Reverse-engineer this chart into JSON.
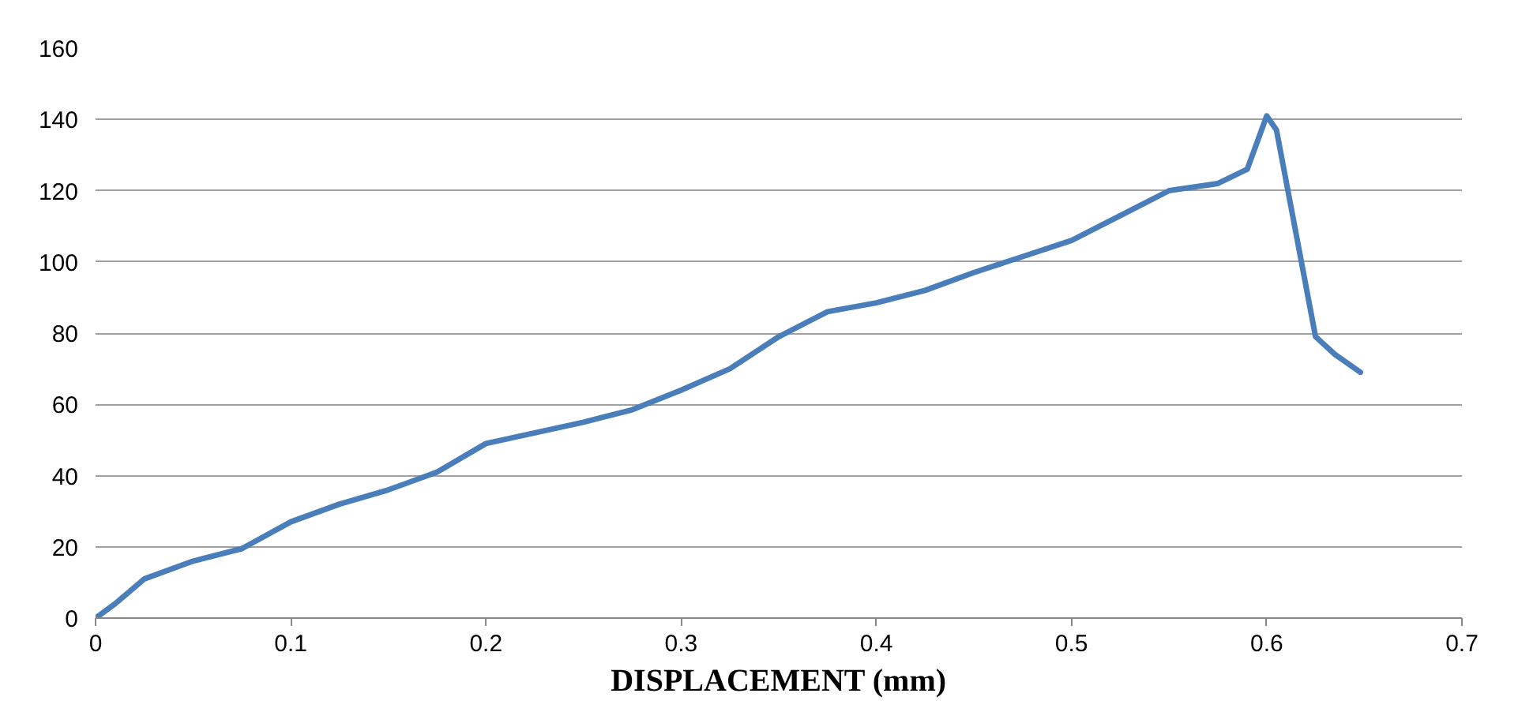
{
  "chart_data": {
    "type": "line",
    "xlabel": "DISPLACEMENT (mm)",
    "xlim": [
      0,
      0.7
    ],
    "xticks": [
      0,
      0.1,
      0.2,
      0.3,
      0.4,
      0.5,
      0.6,
      0.7
    ],
    "ylim": [
      0,
      160
    ],
    "yticks": [
      0,
      20,
      40,
      60,
      80,
      100,
      120,
      140,
      160
    ],
    "grid": "y",
    "series": [
      {
        "color": "#4a7ebb",
        "x": [
          0,
          0.01,
          0.025,
          0.05,
          0.075,
          0.1,
          0.125,
          0.15,
          0.175,
          0.2,
          0.225,
          0.25,
          0.275,
          0.3,
          0.325,
          0.35,
          0.375,
          0.4,
          0.425,
          0.45,
          0.475,
          0.5,
          0.525,
          0.55,
          0.575,
          0.59,
          0.6,
          0.605,
          0.615,
          0.625,
          0.635,
          0.648
        ],
        "values": [
          0,
          4,
          11,
          16,
          19.5,
          27,
          32,
          36,
          41,
          49,
          52,
          55,
          58.5,
          64,
          70,
          79,
          86,
          88.5,
          92,
          97,
          101.5,
          106,
          113,
          120,
          122,
          126,
          141,
          137,
          108,
          79,
          74,
          69
        ]
      }
    ]
  }
}
